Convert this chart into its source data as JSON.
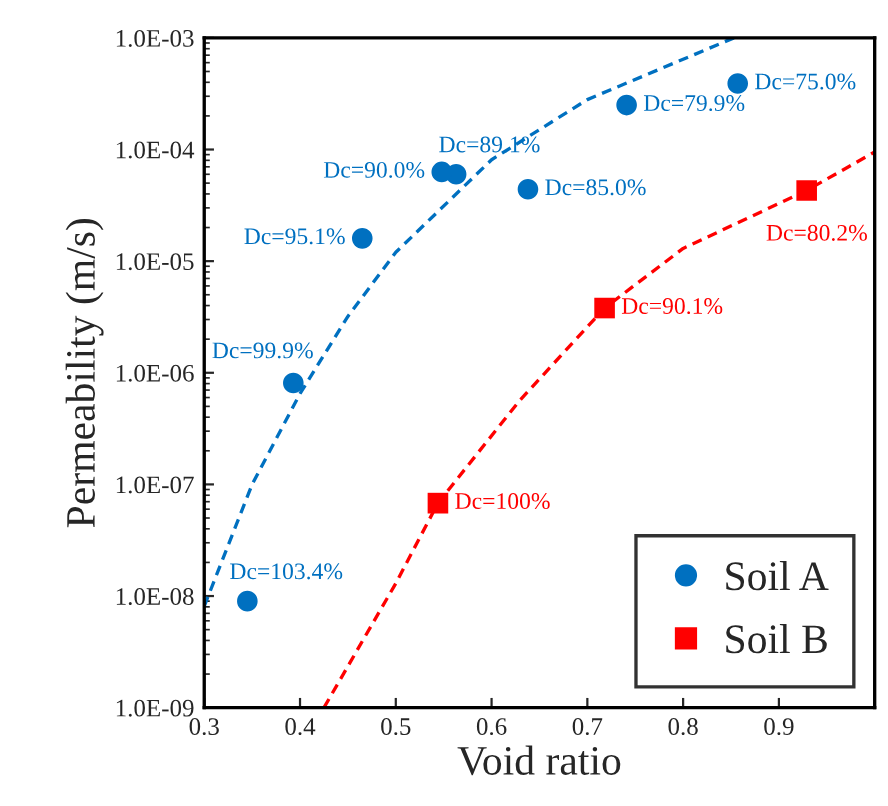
{
  "chart_data": {
    "type": "scatter",
    "xlabel": "Void ratio",
    "ylabel": "Permeability (m/s)",
    "log": "y",
    "xlim": [
      0.3,
      1.0
    ],
    "xticks": [
      0.3,
      0.4,
      0.5,
      0.6,
      0.7,
      0.8,
      0.9
    ],
    "ylim": [
      1e-09,
      0.001
    ],
    "yticks": [
      {
        "value": 1e-09,
        "label": "1.0E-09"
      },
      {
        "value": 1e-08,
        "label": "1.0E-08"
      },
      {
        "value": 1e-07,
        "label": "1.0E-07"
      },
      {
        "value": 1e-06,
        "label": "1.0E-06"
      },
      {
        "value": 1e-05,
        "label": "1.0E-05"
      },
      {
        "value": 0.0001,
        "label": "1.0E-04"
      },
      {
        "value": 0.001,
        "label": "1.0E-03"
      }
    ],
    "grid": false,
    "legend": "bottom right",
    "series": [
      {
        "name": "Soil A",
        "marker": "circle",
        "color": "#0070c0",
        "x": [
          0.857,
          0.741,
          0.563,
          0.548,
          0.638,
          0.465,
          0.393,
          0.345
        ],
        "values": [
          0.00039,
          0.00025,
          6e-05,
          6.3e-05,
          4.4e-05,
          1.6e-05,
          8.1e-07,
          9e-09
        ]
      },
      {
        "name": "Soil B",
        "marker": "square",
        "color": "#ff0000",
        "x": [
          0.929,
          0.718,
          0.544
        ],
        "values": [
          4.3e-05,
          3.8e-06,
          6.8e-08
        ]
      },
      {
        "type": "line",
        "line_style": "dashed",
        "color": "#0070c0",
        "x": [
          0.3,
          0.35,
          0.4,
          0.45,
          0.5,
          0.6,
          0.7,
          0.853
        ],
        "values": [
          8.1e-09,
          1e-07,
          6.5e-07,
          3.2e-06,
          1.2e-05,
          8.1e-05,
          0.00028,
          0.001
        ]
      },
      {
        "type": "line",
        "line_style": "dashed",
        "color": "#ff0000",
        "x": [
          0.425,
          0.5,
          0.544,
          0.629,
          0.718,
          0.8,
          0.929,
          1.0
        ],
        "values": [
          1e-09,
          1.3e-08,
          6.8e-08,
          5.6e-07,
          3.8e-06,
          1.3e-05,
          4.3e-05,
          9.5e-05
        ]
      }
    ],
    "annotations": [
      {
        "text": "Dc=75.0%",
        "x": 0.857,
        "y": 0.00039
      },
      {
        "text": "Dc=79.9%",
        "x": 0.741,
        "y": 0.00025
      },
      {
        "text": "Dc=89.1%",
        "x": 0.563,
        "y": 6e-05
      },
      {
        "text": "Dc=90.0%",
        "x": 0.548,
        "y": 6.3e-05
      },
      {
        "text": "Dc=85.0%",
        "x": 0.638,
        "y": 4.4e-05
      },
      {
        "text": "Dc=95.1%",
        "x": 0.465,
        "y": 1.6e-05
      },
      {
        "text": "Dc=99.9%",
        "x": 0.393,
        "y": 8.1e-07
      },
      {
        "text": "Dc=103.4%",
        "x": 0.345,
        "y": 9e-09
      },
      {
        "text": "Dc=80.2%",
        "x": 0.929,
        "y": 4.3e-05
      },
      {
        "text": "Dc=90.1%",
        "x": 0.718,
        "y": 3.8e-06
      },
      {
        "text": "Dc=100%",
        "x": 0.544,
        "y": 6.8e-08
      }
    ]
  }
}
